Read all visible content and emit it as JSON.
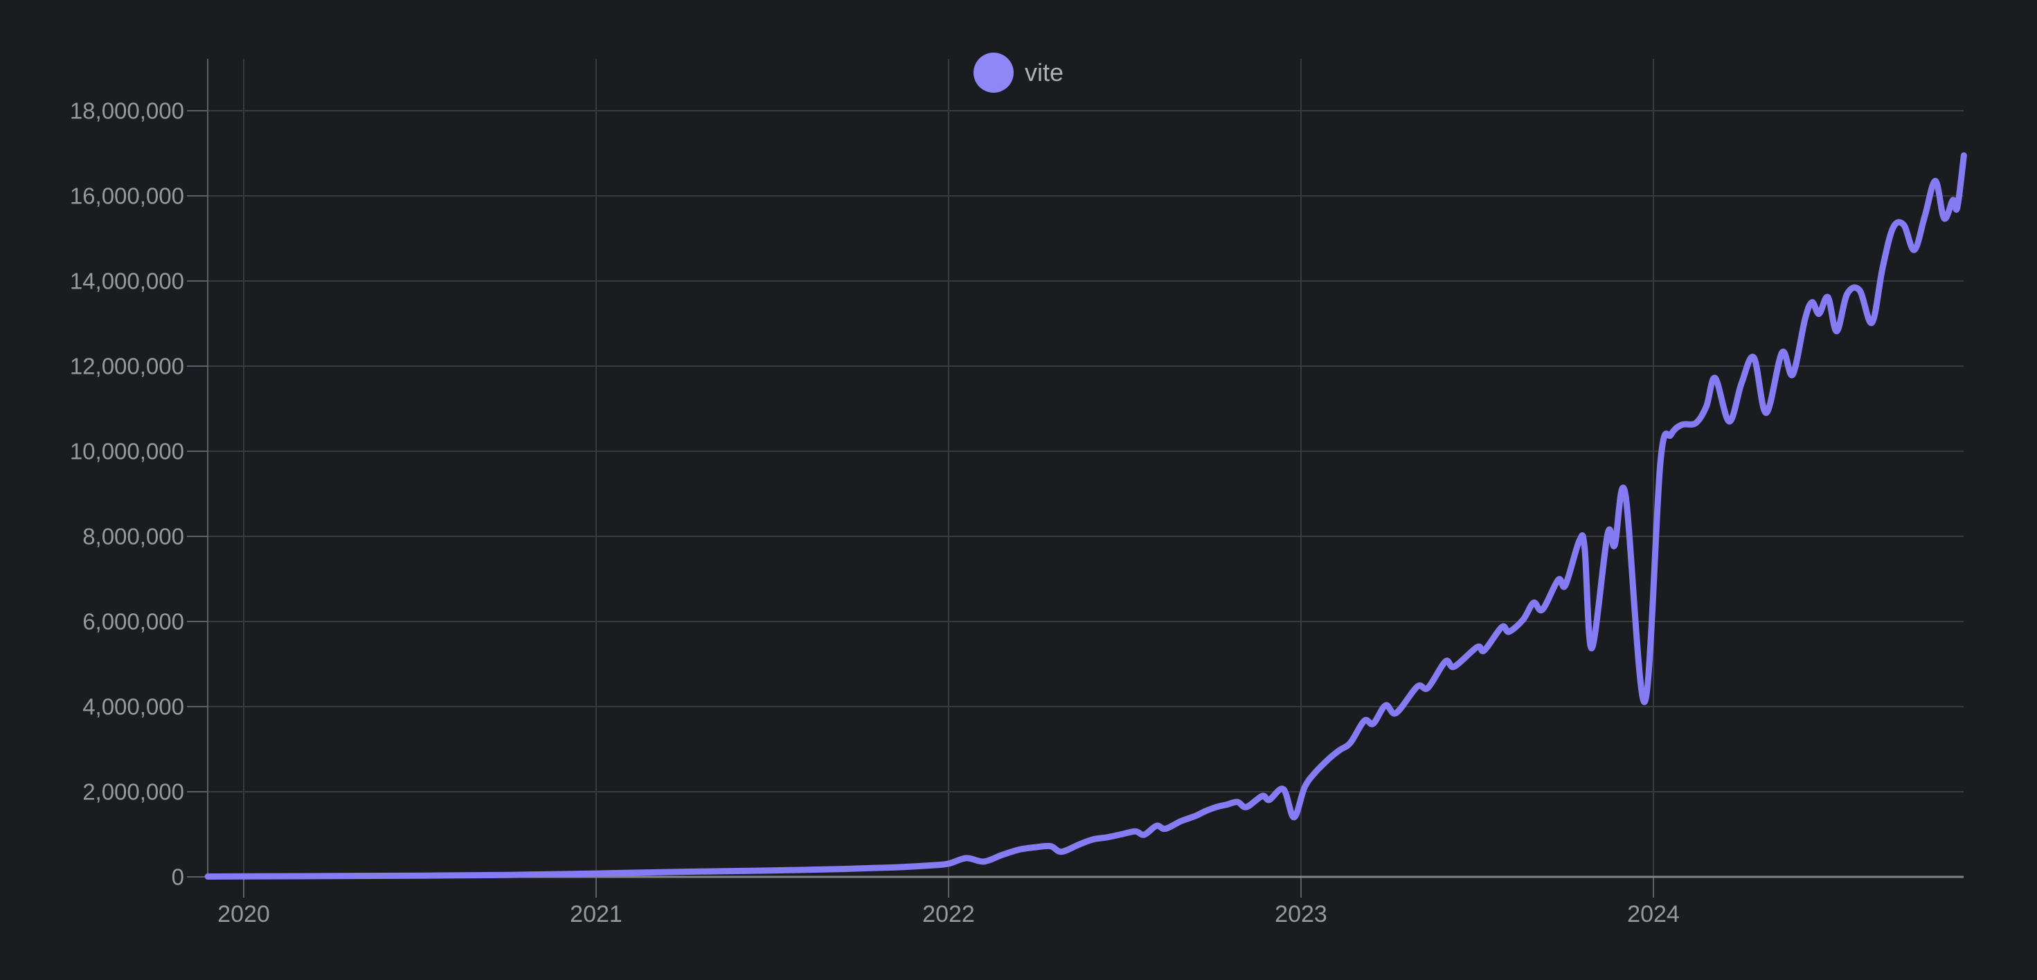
{
  "colors": {
    "background": "#1b1c20",
    "gridline": "#393a40",
    "axis_line": "#83838a",
    "tick_line": "#5d5e66",
    "tick_label": "#98989f",
    "legend_label": "#aeaeb5",
    "series_line": "#857cf4",
    "legend_dot": "#8f86f7"
  },
  "legend": {
    "label": "vite"
  },
  "chart_data": {
    "type": "line",
    "title": "",
    "xlabel": "",
    "ylabel": "",
    "grid": true,
    "legend_position": "top-center",
    "x_range": [
      2019.898,
      2024.881
    ],
    "y_axis": {
      "min": 0,
      "max": 18000000,
      "tick_step": 2000000
    },
    "y_ticks": [
      {
        "value": 0,
        "label": "0"
      },
      {
        "value": 2000000,
        "label": "2,000,000"
      },
      {
        "value": 4000000,
        "label": "4,000,000"
      },
      {
        "value": 6000000,
        "label": "6,000,000"
      },
      {
        "value": 8000000,
        "label": "8,000,000"
      },
      {
        "value": 10000000,
        "label": "10,000,000"
      },
      {
        "value": 12000000,
        "label": "12,000,000"
      },
      {
        "value": 14000000,
        "label": "14,000,000"
      },
      {
        "value": 16000000,
        "label": "16,000,000"
      },
      {
        "value": 18000000,
        "label": "18,000,000"
      }
    ],
    "x_ticks": [
      {
        "value": 2020,
        "label": "2020"
      },
      {
        "value": 2021,
        "label": "2021"
      },
      {
        "value": 2022,
        "label": "2022"
      },
      {
        "value": 2023,
        "label": "2023"
      },
      {
        "value": 2024,
        "label": "2024"
      }
    ],
    "series": [
      {
        "name": "vite",
        "points": [
          [
            2019.898,
            8000
          ],
          [
            2020.0,
            12000
          ],
          [
            2020.25,
            20000
          ],
          [
            2020.5,
            30000
          ],
          [
            2020.75,
            45000
          ],
          [
            2021.0,
            80000
          ],
          [
            2021.25,
            120000
          ],
          [
            2021.5,
            150000
          ],
          [
            2021.7,
            185000
          ],
          [
            2021.85,
            225000
          ],
          [
            2021.95,
            270000
          ],
          [
            2022.0,
            310000
          ],
          [
            2022.05,
            440000
          ],
          [
            2022.1,
            360000
          ],
          [
            2022.15,
            510000
          ],
          [
            2022.2,
            640000
          ],
          [
            2022.25,
            700000
          ],
          [
            2022.29,
            720000
          ],
          [
            2022.32,
            590000
          ],
          [
            2022.37,
            760000
          ],
          [
            2022.41,
            880000
          ],
          [
            2022.45,
            930000
          ],
          [
            2022.49,
            1000000
          ],
          [
            2022.53,
            1070000
          ],
          [
            2022.555,
            990000
          ],
          [
            2022.59,
            1200000
          ],
          [
            2022.615,
            1130000
          ],
          [
            2022.66,
            1310000
          ],
          [
            2022.7,
            1430000
          ],
          [
            2022.73,
            1550000
          ],
          [
            2022.76,
            1640000
          ],
          [
            2022.79,
            1700000
          ],
          [
            2022.82,
            1760000
          ],
          [
            2022.845,
            1640000
          ],
          [
            2022.89,
            1900000
          ],
          [
            2022.91,
            1810000
          ],
          [
            2022.95,
            2060000
          ],
          [
            2022.98,
            1400000
          ],
          [
            2023.01,
            2100000
          ],
          [
            2023.04,
            2450000
          ],
          [
            2023.08,
            2780000
          ],
          [
            2023.11,
            2980000
          ],
          [
            2023.14,
            3150000
          ],
          [
            2023.18,
            3670000
          ],
          [
            2023.205,
            3600000
          ],
          [
            2023.24,
            4030000
          ],
          [
            2023.27,
            3850000
          ],
          [
            2023.33,
            4470000
          ],
          [
            2023.36,
            4440000
          ],
          [
            2023.41,
            5060000
          ],
          [
            2023.435,
            4940000
          ],
          [
            2023.5,
            5400000
          ],
          [
            2023.52,
            5320000
          ],
          [
            2023.57,
            5870000
          ],
          [
            2023.59,
            5760000
          ],
          [
            2023.63,
            6040000
          ],
          [
            2023.66,
            6440000
          ],
          [
            2023.685,
            6280000
          ],
          [
            2023.73,
            6980000
          ],
          [
            2023.75,
            6850000
          ],
          [
            2023.79,
            7900000
          ],
          [
            2023.805,
            7720000
          ],
          [
            2023.825,
            5370000
          ],
          [
            2023.87,
            8050000
          ],
          [
            2023.89,
            7790000
          ],
          [
            2023.92,
            9010000
          ],
          [
            2023.975,
            4110000
          ],
          [
            2024.02,
            9760000
          ],
          [
            2024.05,
            10390000
          ],
          [
            2024.08,
            10620000
          ],
          [
            2024.12,
            10660000
          ],
          [
            2024.15,
            11050000
          ],
          [
            2024.175,
            11720000
          ],
          [
            2024.215,
            10700000
          ],
          [
            2024.25,
            11600000
          ],
          [
            2024.285,
            12200000
          ],
          [
            2024.32,
            10900000
          ],
          [
            2024.365,
            12320000
          ],
          [
            2024.395,
            11800000
          ],
          [
            2024.43,
            13100000
          ],
          [
            2024.45,
            13500000
          ],
          [
            2024.47,
            13230000
          ],
          [
            2024.495,
            13620000
          ],
          [
            2024.52,
            12820000
          ],
          [
            2024.55,
            13700000
          ],
          [
            2024.585,
            13780000
          ],
          [
            2024.62,
            13020000
          ],
          [
            2024.65,
            14300000
          ],
          [
            2024.68,
            15250000
          ],
          [
            2024.71,
            15320000
          ],
          [
            2024.74,
            14730000
          ],
          [
            2024.77,
            15520000
          ],
          [
            2024.8,
            16350000
          ],
          [
            2024.825,
            15470000
          ],
          [
            2024.85,
            15900000
          ],
          [
            2024.862,
            15720000
          ],
          [
            2024.881,
            16950000
          ]
        ]
      }
    ]
  }
}
